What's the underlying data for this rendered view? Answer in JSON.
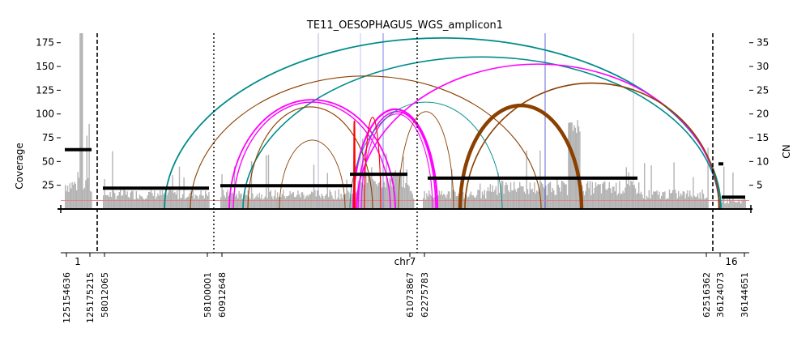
{
  "chart_data": {
    "type": "amplicon-structure",
    "title": "TE11_OESOPHAGUS_WGS_amplicon1",
    "ylabel_left": "Coverage",
    "ylabel_right": "CN",
    "xlabel": "chr7",
    "ylim_coverage": [
      0,
      185
    ],
    "ylim_cn": [
      0,
      37
    ],
    "left_ticks": [
      25,
      50,
      75,
      100,
      125,
      150,
      175
    ],
    "right_ticks": [
      5,
      10,
      15,
      20,
      25,
      30,
      35
    ],
    "chromosome_labels": [
      {
        "name": "1",
        "x": 96
      },
      {
        "name": "chr7",
        "x": 500
      },
      {
        "name": "16",
        "x": 903
      }
    ],
    "segments": [
      {
        "id": "chr1-a",
        "x0": 80,
        "x1": 113
      },
      {
        "id": "chr7-a",
        "x0": 127,
        "x1": 258
      },
      {
        "id": "chr7-b",
        "x0": 272,
        "x1": 510
      },
      {
        "id": "chr7-c",
        "x0": 522,
        "x1": 874
      },
      {
        "id": "chr16-a",
        "x0": 886,
        "x1": 920
      }
    ],
    "position_labels": [
      {
        "label": "125154636",
        "x": 82
      },
      {
        "label": "125175215",
        "x": 111
      },
      {
        "label": "58012065",
        "x": 129
      },
      {
        "label": "58100001",
        "x": 256
      },
      {
        "label": "60912648",
        "x": 274
      },
      {
        "label": "61073867",
        "x": 506
      },
      {
        "label": "62275783",
        "x": 524
      },
      {
        "label": "62516362",
        "x": 872
      },
      {
        "label": "36124073",
        "x": 889
      },
      {
        "label": "36144651",
        "x": 919
      }
    ],
    "boundaries": [
      {
        "x": 120,
        "style": "dashed"
      },
      {
        "x": 264,
        "style": "dotted"
      },
      {
        "x": 515,
        "style": "dotted"
      },
      {
        "x": 880,
        "style": "dashed"
      }
    ],
    "copy_number_segments": [
      {
        "x0": 80,
        "x1": 113,
        "cn": 12.5
      },
      {
        "x0": 127,
        "x1": 258,
        "cn": 4.4
      },
      {
        "x0": 272,
        "x1": 435,
        "cn": 4.9
      },
      {
        "x0": 432,
        "x1": 503,
        "cn": 7.3
      },
      {
        "x0": 528,
        "x1": 787,
        "cn": 6.5
      },
      {
        "x0": 887,
        "x1": 893,
        "cn": 9.5
      },
      {
        "x0": 891,
        "x1": 920,
        "cn": 2.5
      }
    ],
    "breakpoints": [
      {
        "from": 203,
        "to": 890,
        "cn": 36,
        "color": "#008b8b",
        "width": 1.8
      },
      {
        "from": 300,
        "to": 888,
        "cn": 32,
        "color": "#008b8b",
        "width": 1.6
      },
      {
        "from": 235,
        "to": 668,
        "cn": 28,
        "color": "#8b4000",
        "width": 1.1
      },
      {
        "from": 283,
        "to": 488,
        "cn": 23,
        "color": "#ff00ff",
        "width": 1.8
      },
      {
        "from": 288,
        "to": 482,
        "cn": 22.5,
        "color": "#ff00ff",
        "width": 1.4
      },
      {
        "from": 306,
        "to": 460,
        "cn": 21.5,
        "color": "#8b4000",
        "width": 1.1
      },
      {
        "from": 436,
        "to": 540,
        "cn": 21,
        "color": "#ff00ff",
        "width": 2.2
      },
      {
        "from": 442,
        "to": 538,
        "cn": 20.5,
        "color": "#ff00ff",
        "width": 1.6
      },
      {
        "from": 446,
        "to": 534,
        "cn": 20,
        "color": "#ff00ff",
        "width": 1.1
      },
      {
        "from": 432,
        "to": 620,
        "cn": 22.5,
        "color": "#008b8b",
        "width": 0.9
      },
      {
        "from": 440,
        "to": 888,
        "cn": 30.5,
        "color": "#ff00ff",
        "width": 1.6
      },
      {
        "from": 345,
        "to": 426,
        "cn": 14.5,
        "color": "#8b4000",
        "width": 0.9
      },
      {
        "from": 450,
        "to": 470,
        "cn": 19.3,
        "color": "#ff0000",
        "width": 1.1
      },
      {
        "from": 568,
        "to": 718,
        "cn": 21.8,
        "color": "#8b4000",
        "width": 4.5
      },
      {
        "from": 574,
        "to": 888,
        "cn": 26.5,
        "color": "#8b4000",
        "width": 1.6
      },
      {
        "from": 492,
        "to": 560,
        "cn": 20.5,
        "color": "#8b4000",
        "width": 0.9
      },
      {
        "from": 437,
        "to": 438,
        "cn": 18.5,
        "color": "#ff0000",
        "width": 1.8
      }
    ],
    "thin_vertical_lines": [
      {
        "x": 393,
        "color": "#b0a0c0"
      },
      {
        "x": 445,
        "color": "#b0b0ff"
      },
      {
        "x": 473,
        "color": "#6060e0"
      },
      {
        "x": 673,
        "color": "#4040d0"
      },
      {
        "x": 782,
        "color": "#b0b0b0"
      }
    ],
    "baseline_cn": 1.8,
    "colors": {
      "coverage_bars": "#b3b3b3",
      "copy_number": "#000000",
      "baseline": "#e08080"
    }
  }
}
